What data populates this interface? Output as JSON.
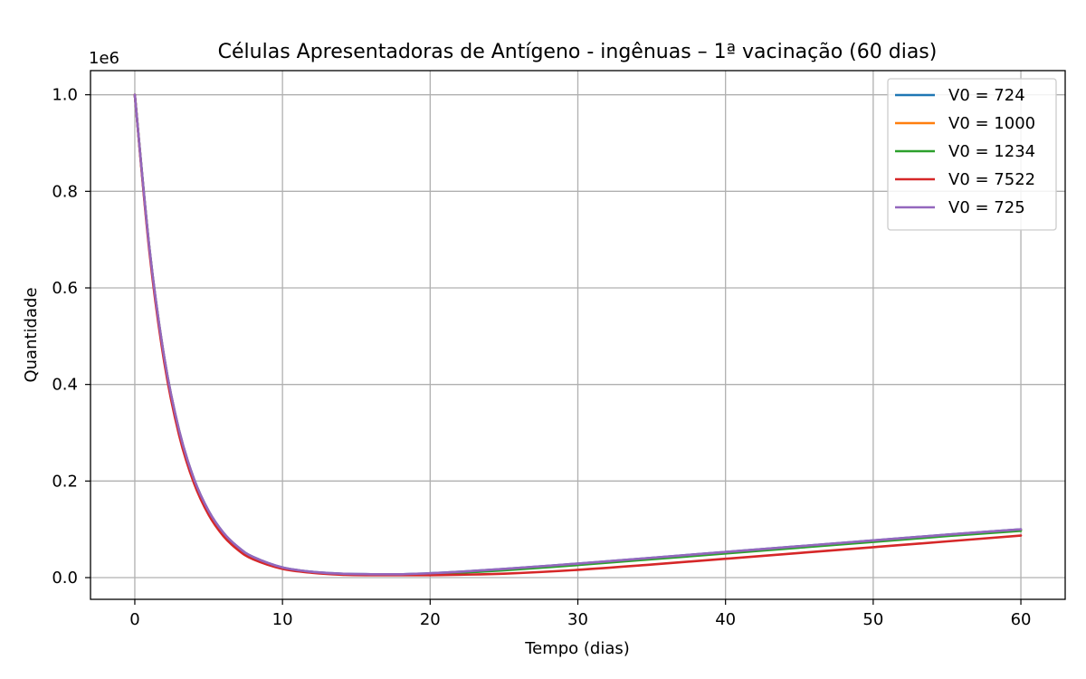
{
  "chart_data": {
    "type": "line",
    "title": "Células Apresentadoras de Antígeno - ingênuas – 1ª vacinação (60 dias)",
    "xlabel": "Tempo (dias)",
    "ylabel": "Quantidade",
    "y_offset_label": "1e6",
    "xlim": [
      -3,
      63
    ],
    "ylim": [
      -0.045,
      1.05
    ],
    "y_scale": 1000000,
    "x_ticks": [
      0,
      10,
      20,
      30,
      40,
      50,
      60
    ],
    "x_tick_labels": [
      "0",
      "10",
      "20",
      "30",
      "40",
      "50",
      "60"
    ],
    "y_ticks": [
      0.0,
      0.2,
      0.4,
      0.6,
      0.8,
      1.0
    ],
    "y_tick_labels": [
      "0.0",
      "0.2",
      "0.4",
      "0.6",
      "0.8",
      "1.0"
    ],
    "grid": true,
    "legend_position": "top-right",
    "series": [
      {
        "name": "V0 = 724",
        "color": "#1f77b4",
        "x": [
          0,
          1,
          2,
          3,
          4,
          5,
          6,
          7,
          8,
          10,
          12,
          14,
          16,
          18,
          20,
          22,
          25,
          30,
          35,
          40,
          45,
          50,
          55,
          60
        ],
        "y": [
          1.0,
          0.68,
          0.455,
          0.305,
          0.205,
          0.138,
          0.093,
          0.063,
          0.043,
          0.021,
          0.012,
          0.008,
          0.007,
          0.007,
          0.009,
          0.012,
          0.018,
          0.029,
          0.041,
          0.053,
          0.065,
          0.077,
          0.089,
          0.1
        ]
      },
      {
        "name": "V0 = 1000",
        "color": "#ff7f0e",
        "x": [
          0,
          1,
          2,
          3,
          4,
          5,
          6,
          7,
          8,
          10,
          12,
          14,
          16,
          18,
          20,
          22,
          25,
          30,
          35,
          40,
          45,
          50,
          55,
          60
        ],
        "y": [
          1.0,
          0.679,
          0.454,
          0.304,
          0.204,
          0.137,
          0.092,
          0.062,
          0.042,
          0.02,
          0.011,
          0.007,
          0.006,
          0.006,
          0.008,
          0.011,
          0.017,
          0.028,
          0.04,
          0.052,
          0.064,
          0.076,
          0.088,
          0.099
        ]
      },
      {
        "name": "V0 = 1234",
        "color": "#2ca02c",
        "x": [
          0,
          1,
          2,
          3,
          4,
          5,
          6,
          7,
          8,
          10,
          12,
          14,
          16,
          18,
          20,
          22,
          25,
          30,
          35,
          40,
          45,
          50,
          55,
          60
        ],
        "y": [
          1.0,
          0.678,
          0.453,
          0.303,
          0.203,
          0.136,
          0.091,
          0.061,
          0.041,
          0.019,
          0.011,
          0.007,
          0.006,
          0.006,
          0.007,
          0.01,
          0.015,
          0.026,
          0.038,
          0.05,
          0.062,
          0.074,
          0.086,
          0.097
        ]
      },
      {
        "name": "V0 = 7522",
        "color": "#d62728",
        "x": [
          0,
          1,
          2,
          3,
          4,
          5,
          6,
          7,
          8,
          10,
          12,
          14,
          16,
          18,
          20,
          22,
          25,
          30,
          35,
          40,
          45,
          50,
          55,
          60
        ],
        "y": [
          1.0,
          0.672,
          0.445,
          0.295,
          0.196,
          0.13,
          0.086,
          0.057,
          0.038,
          0.018,
          0.01,
          0.006,
          0.005,
          0.005,
          0.005,
          0.006,
          0.008,
          0.016,
          0.027,
          0.039,
          0.051,
          0.063,
          0.075,
          0.087
        ]
      },
      {
        "name": "V0 = 725",
        "color": "#9467bd",
        "x": [
          0,
          1,
          2,
          3,
          4,
          5,
          6,
          7,
          8,
          10,
          12,
          14,
          16,
          18,
          20,
          22,
          25,
          30,
          35,
          40,
          45,
          50,
          55,
          60
        ],
        "y": [
          1.0,
          0.68,
          0.455,
          0.305,
          0.205,
          0.138,
          0.093,
          0.063,
          0.043,
          0.021,
          0.012,
          0.008,
          0.007,
          0.007,
          0.009,
          0.012,
          0.018,
          0.029,
          0.041,
          0.053,
          0.065,
          0.077,
          0.089,
          0.1
        ]
      }
    ]
  }
}
